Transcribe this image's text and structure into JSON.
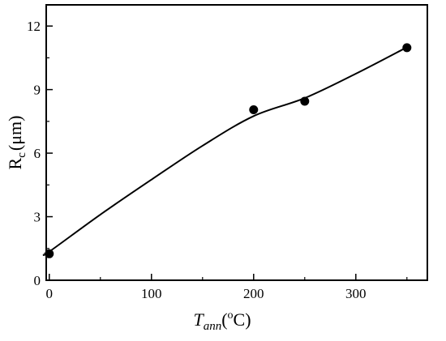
{
  "chart_data": {
    "type": "scatter",
    "x_ticks": [
      0,
      100,
      200,
      300
    ],
    "y_ticks": [
      0,
      3,
      6,
      9,
      12
    ],
    "xlim": [
      -3,
      370
    ],
    "ylim": [
      0,
      13
    ],
    "minor_ticks": true,
    "grid": false,
    "xlabel": {
      "main": "T",
      "subscript": "ann",
      "open_paren": "(",
      "superscript": "o",
      "unit": "C)"
    },
    "ylabel": {
      "main": "R",
      "subscript": "c",
      "unit": "(μm)"
    },
    "series": [
      {
        "style": "markers",
        "x": [
          0,
          200,
          250,
          350
        ],
        "y": [
          1.25,
          8.05,
          8.45,
          10.98
        ]
      },
      {
        "style": "line",
        "x": [
          -5,
          0,
          50,
          100,
          150,
          200,
          250,
          300,
          350
        ],
        "y": [
          1.25,
          1.35,
          3.1,
          4.75,
          6.35,
          7.75,
          8.6,
          9.75,
          11.0
        ]
      }
    ],
    "colors": {
      "marker": "#000000",
      "line": "#000000",
      "axes": "#000000"
    }
  }
}
